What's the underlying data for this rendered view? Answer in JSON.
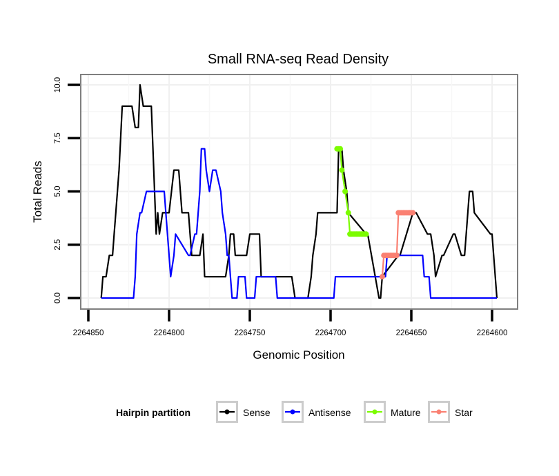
{
  "chart_data": {
    "type": "line",
    "title": "Small RNA-seq Read Density",
    "xlabel": "Genomic Position",
    "ylabel": "Total Reads",
    "x_reversed": true,
    "xlim": [
      2264855,
      2264585
    ],
    "ylim": [
      -0.5,
      10.5
    ],
    "x_ticks": [
      2264850,
      2264800,
      2264750,
      2264700,
      2264650,
      2264600
    ],
    "x_tick_labels": [
      "2264850",
      "2264800",
      "2264750",
      "2264700",
      "2264650",
      "2264600"
    ],
    "y_ticks": [
      0,
      2.5,
      5,
      7.5,
      10
    ],
    "y_tick_labels": [
      "0.0",
      "2.5",
      "5.0",
      "7.5",
      "10.0"
    ],
    "grid": true,
    "legend": {
      "title": "Hairpin partition",
      "placement": "bottom",
      "entries": [
        {
          "label": "Sense",
          "color": "#000000"
        },
        {
          "label": "Antisense",
          "color": "#0000ff"
        },
        {
          "label": "Mature",
          "color": "#7cfc00"
        },
        {
          "label": "Star",
          "color": "#fa8072"
        }
      ]
    },
    "series": [
      {
        "name": "Sense",
        "color": "#000000",
        "markers": false,
        "x": [
          2264842,
          2264841,
          2264839,
          2264837,
          2264835,
          2264834,
          2264833,
          2264831,
          2264829,
          2264823,
          2264821,
          2264819,
          2264818,
          2264816,
          2264811,
          2264808,
          2264807,
          2264806,
          2264804,
          2264800,
          2264797,
          2264794,
          2264792,
          2264788,
          2264787,
          2264786,
          2264781,
          2264779,
          2264778,
          2264765,
          2264763,
          2264762,
          2264760,
          2264759,
          2264752,
          2264750,
          2264744,
          2264743,
          2264724,
          2264722,
          2264714,
          2264712,
          2264711,
          2264709,
          2264708,
          2264696,
          2264695,
          2264693,
          2264692,
          2264690,
          2264689,
          2264678,
          2264677,
          2264670,
          2264669,
          2264668,
          2264658,
          2264657,
          2264649,
          2264647,
          2264640,
          2264638,
          2264636,
          2264635,
          2264631,
          2264630,
          2264624,
          2264623,
          2264619,
          2264617,
          2264614,
          2264612,
          2264611,
          2264601,
          2264600,
          2264599,
          2264597
        ],
        "y": [
          0,
          1,
          1,
          2,
          2,
          3,
          4,
          6,
          9,
          9,
          8,
          8,
          10,
          9,
          9,
          3,
          4,
          3,
          4,
          4,
          6,
          6,
          4,
          4,
          3,
          2,
          2,
          3,
          1,
          1,
          2,
          3,
          3,
          2,
          2,
          3,
          3,
          1,
          1,
          0,
          0,
          1,
          2,
          3,
          4,
          4,
          7,
          7,
          6,
          5,
          4,
          3,
          3,
          0,
          0,
          1,
          2,
          2,
          4,
          4,
          3,
          3,
          2,
          1,
          2,
          2,
          3,
          3,
          2,
          2,
          5,
          5,
          4,
          3,
          3,
          2,
          0
        ]
      },
      {
        "name": "Antisense",
        "color": "#0000ff",
        "markers": false,
        "x": [
          2264842,
          2264822,
          2264821,
          2264820,
          2264818,
          2264817,
          2264814,
          2264813,
          2264803,
          2264802,
          2264800,
          2264799,
          2264797,
          2264796,
          2264788,
          2264787,
          2264784,
          2264783,
          2264781,
          2264780,
          2264778,
          2264777,
          2264775,
          2264773,
          2264771,
          2264768,
          2264767,
          2264765,
          2264764,
          2264763,
          2264762,
          2264761,
          2264758,
          2264757,
          2264756,
          2264753,
          2264752,
          2264747,
          2264746,
          2264734,
          2264733,
          2264698,
          2264697,
          2264666,
          2264665,
          2264643,
          2264642,
          2264639,
          2264638,
          2264597
        ],
        "y": [
          0,
          0,
          1,
          3,
          4,
          4,
          5,
          5,
          5,
          4,
          2,
          1,
          2,
          3,
          2,
          2,
          3,
          3,
          5,
          7,
          7,
          6,
          5,
          6,
          6,
          5,
          4,
          3,
          2,
          2,
          1,
          0,
          0,
          1,
          1,
          1,
          0,
          0,
          1,
          1,
          0,
          0,
          1,
          1,
          2,
          2,
          1,
          1,
          0,
          0
        ]
      },
      {
        "name": "Mature",
        "color": "#7cfc00",
        "markers": true,
        "x": [
          2264696,
          2264695,
          2264694,
          2264693,
          2264691,
          2264689,
          2264688,
          2264687,
          2264686,
          2264685,
          2264684,
          2264683,
          2264682,
          2264681,
          2264680,
          2264679,
          2264678
        ],
        "y": [
          7,
          7,
          7,
          6,
          5,
          4,
          3,
          3,
          3,
          3,
          3,
          3,
          3,
          3,
          3,
          3,
          3
        ]
      },
      {
        "name": "Star",
        "color": "#fa8072",
        "markers": true,
        "x": [
          2264668,
          2264667,
          2264666,
          2264665,
          2264664,
          2264663,
          2264662,
          2264661,
          2264660,
          2264659,
          2264658,
          2264657,
          2264656,
          2264655,
          2264654,
          2264653,
          2264652,
          2264651,
          2264650,
          2264649
        ],
        "y": [
          1,
          2,
          2,
          2,
          2,
          2,
          2,
          2,
          2,
          2,
          4,
          4,
          4,
          4,
          4,
          4,
          4,
          4,
          4,
          4
        ]
      }
    ]
  }
}
